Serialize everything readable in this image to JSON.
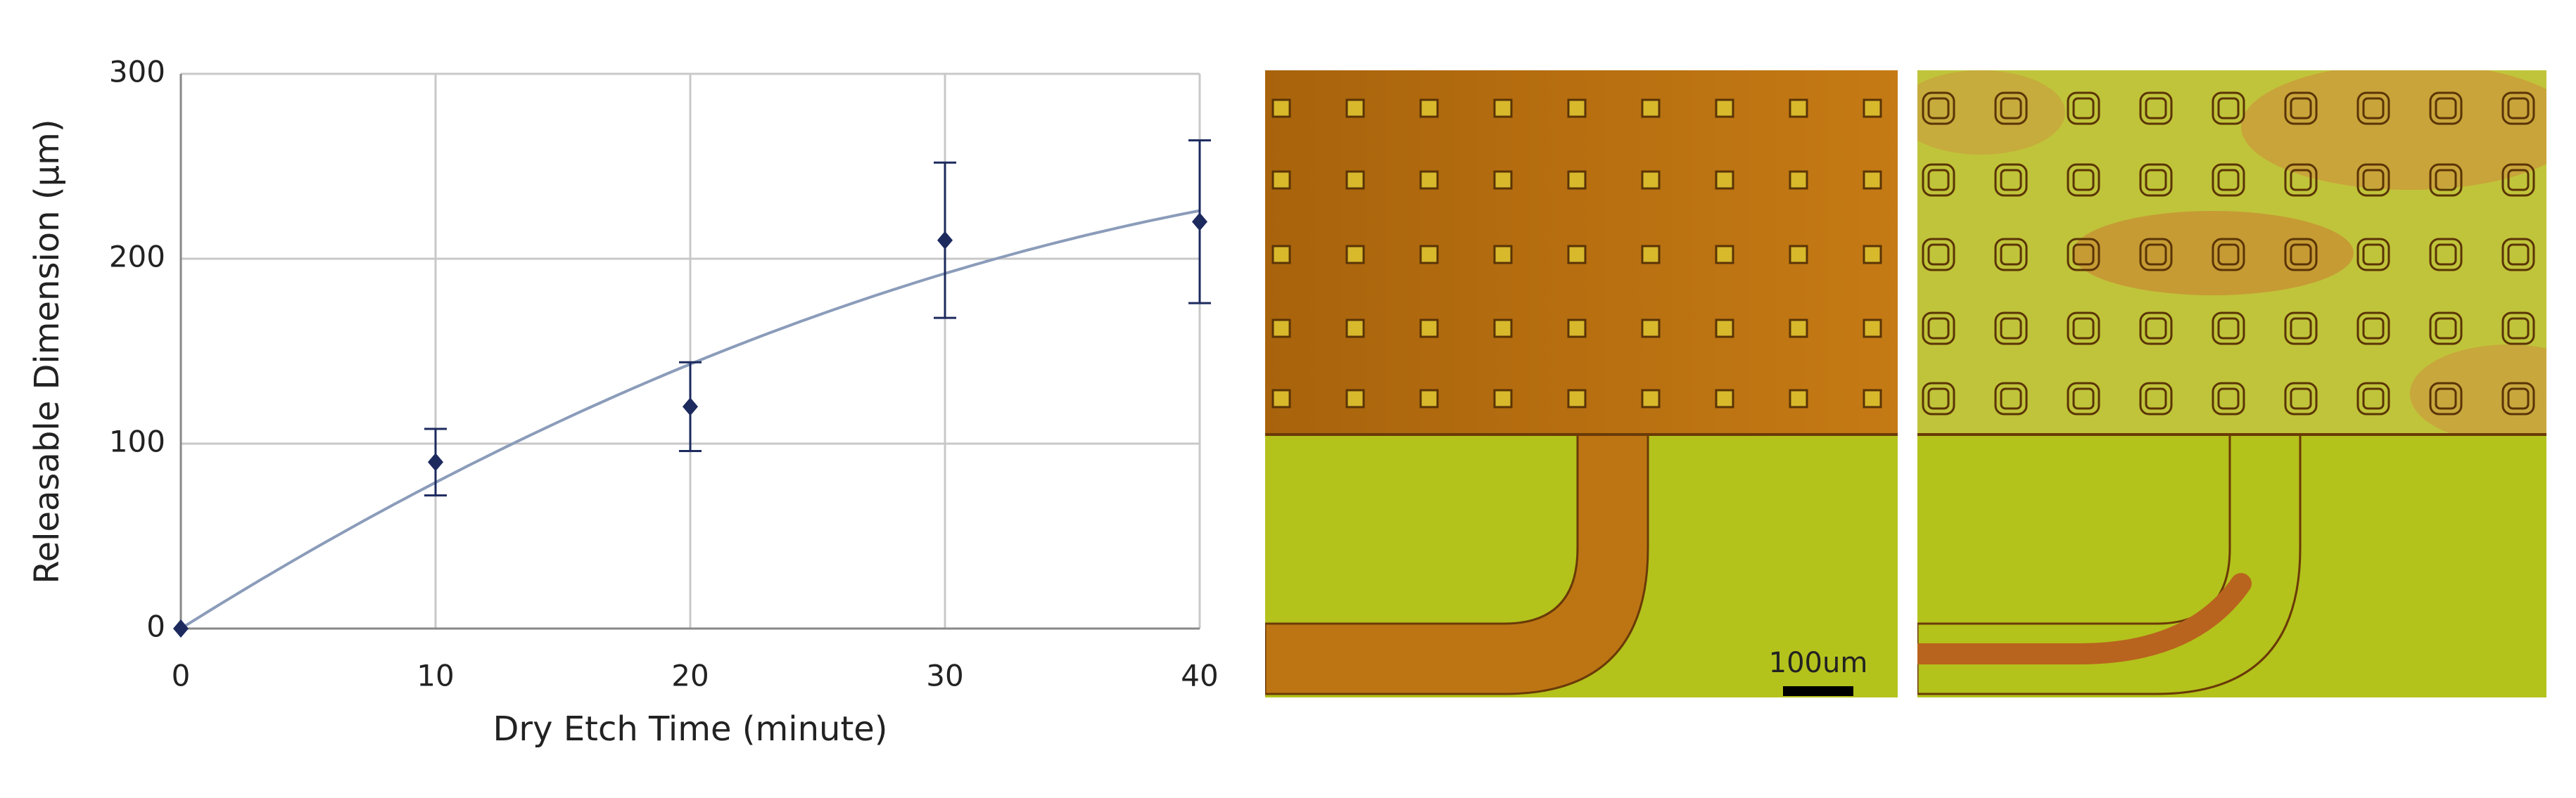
{
  "chart_data": {
    "type": "scatter",
    "xlabel": "Dry Etch Time (minute)",
    "ylabel": "Releasable Dimension (µm)",
    "x": [
      0,
      10,
      20,
      30,
      40
    ],
    "values": [
      0,
      90,
      120,
      210,
      220
    ],
    "errors": [
      0,
      18,
      24,
      42,
      44
    ],
    "color": "#1c2a5e",
    "trendline": {
      "type": "polynomial",
      "coefficients": [
        0,
        8.65,
        -0.075
      ],
      "color": "#8b9cba"
    },
    "xlim": [
      0,
      40
    ],
    "ylim": [
      0,
      300
    ],
    "xticks": [
      0,
      10,
      20,
      30,
      40
    ],
    "yticks": [
      0,
      100,
      200,
      300
    ],
    "grid": true
  },
  "images": {
    "scale_bar_label": "100um"
  }
}
